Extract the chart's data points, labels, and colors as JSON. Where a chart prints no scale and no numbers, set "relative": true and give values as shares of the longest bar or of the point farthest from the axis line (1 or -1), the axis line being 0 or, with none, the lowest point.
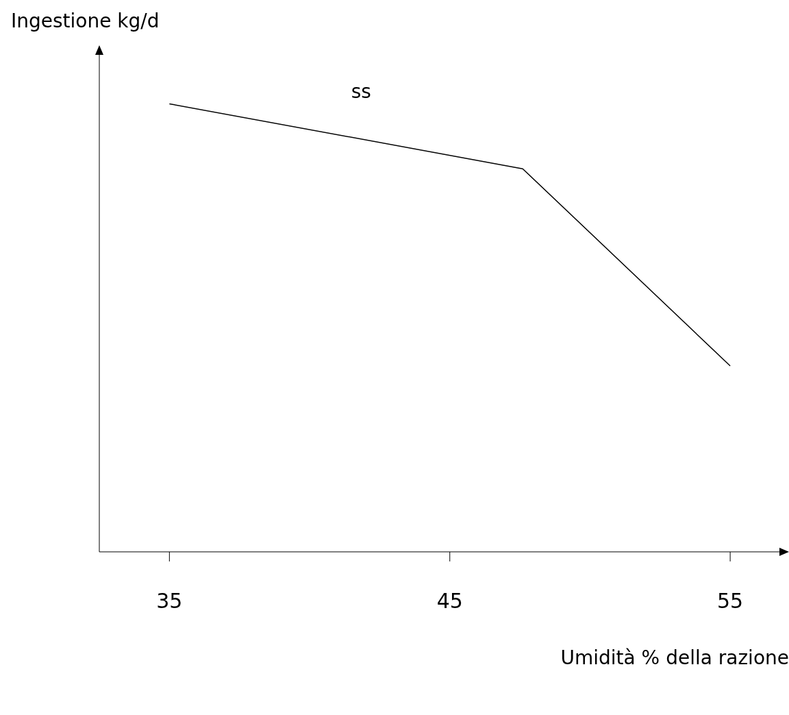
{
  "chart_data": {
    "type": "line",
    "xlabel": "Umidità % della razione",
    "ylabel": "Ingestione kg/d",
    "relative": true,
    "xlim": [
      32.5,
      57
    ],
    "xticks": [
      35,
      45,
      55
    ],
    "marker": "none",
    "line_style": "solid",
    "series": [
      {
        "name": "ss",
        "color": "#000000",
        "x": [
          35,
          47.6,
          55
        ],
        "values": [
          1,
          0.855,
          0.415
        ]
      }
    ]
  }
}
